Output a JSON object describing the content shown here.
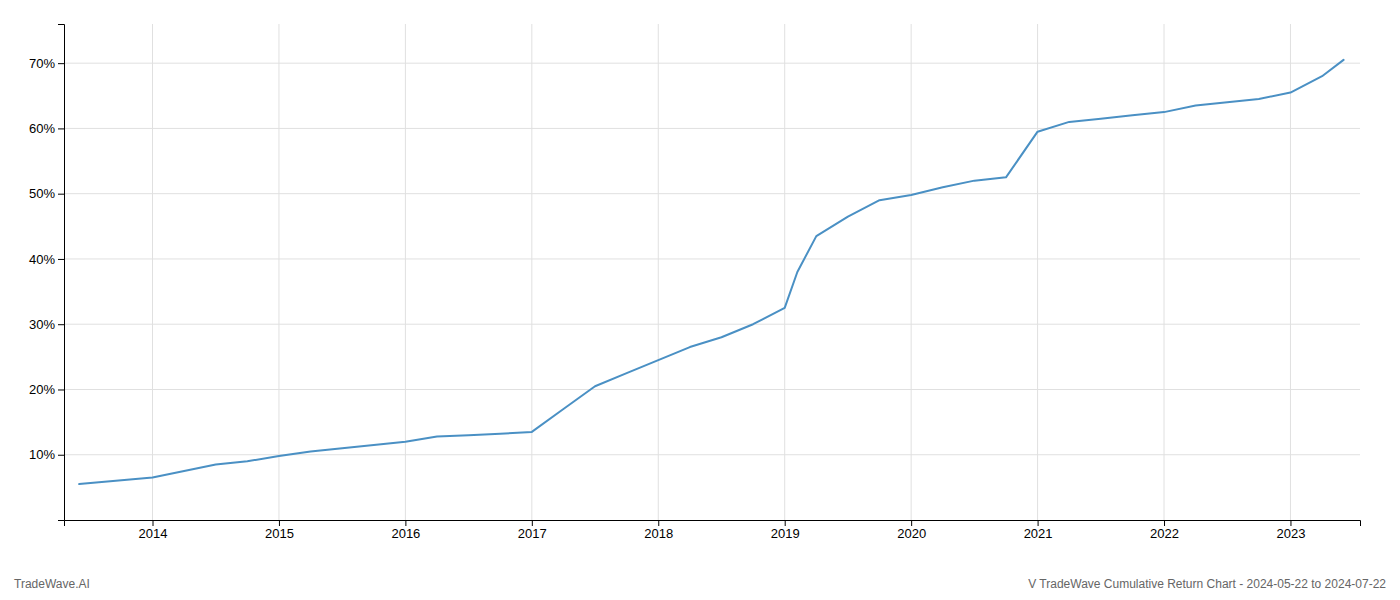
{
  "chart_data": {
    "type": "line",
    "annotations": [
      "TradeWave.AI",
      "V TradeWave Cumulative Return Chart - 2024-05-22 to 2024-07-22"
    ],
    "color": "#4a90c4",
    "grid": true,
    "x": [
      2013.42,
      2014.0,
      2014.25,
      2014.5,
      2014.75,
      2015.0,
      2015.25,
      2015.5,
      2015.75,
      2016.0,
      2016.25,
      2016.5,
      2016.75,
      2017.0,
      2017.25,
      2017.5,
      2017.75,
      2018.0,
      2018.25,
      2018.5,
      2018.75,
      2019.0,
      2019.1,
      2019.25,
      2019.5,
      2019.75,
      2020.0,
      2020.25,
      2020.5,
      2020.75,
      2021.0,
      2021.25,
      2021.5,
      2021.75,
      2022.0,
      2022.25,
      2022.5,
      2022.75,
      2023.0,
      2023.25,
      2023.42
    ],
    "values": [
      5.5,
      6.5,
      7.5,
      8.5,
      9.0,
      9.8,
      10.5,
      11.0,
      11.5,
      12.0,
      12.8,
      13.0,
      13.2,
      13.5,
      17.0,
      20.5,
      22.5,
      24.5,
      26.5,
      28.0,
      30.0,
      32.5,
      38.0,
      43.5,
      46.5,
      49.0,
      49.8,
      51.0,
      52.0,
      52.5,
      59.5,
      61.0,
      61.5,
      62.0,
      62.5,
      63.5,
      64.0,
      64.5,
      65.5,
      68.0,
      70.5
    ],
    "xlim": [
      2013.3,
      2023.55
    ],
    "xticks": [
      2014,
      2015,
      2016,
      2017,
      2018,
      2019,
      2020,
      2021,
      2022,
      2023
    ],
    "ylim": [
      0,
      76
    ],
    "yticks": [
      {
        "value": 10,
        "label": "10%"
      },
      {
        "value": 20,
        "label": "20%"
      },
      {
        "value": 30,
        "label": "30%"
      },
      {
        "value": 40,
        "label": "40%"
      },
      {
        "value": 50,
        "label": "50%"
      },
      {
        "value": 60,
        "label": "60%"
      },
      {
        "value": 70,
        "label": "70%"
      }
    ]
  }
}
